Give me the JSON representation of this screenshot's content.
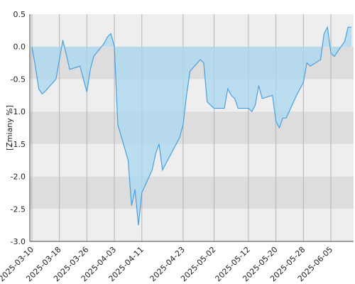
{
  "chart_data": {
    "type": "area",
    "title": "",
    "xlabel": "",
    "ylabel": "[Zmiany %]",
    "ylim": [
      -3.0,
      0.5
    ],
    "yticks": [
      "0.5",
      "0.0",
      "-0.5",
      "-1.0",
      "-1.5",
      "-2.0",
      "-2.5",
      "-3.0"
    ],
    "xticks": [
      "2025-03-10",
      "2025-03-18",
      "2025-03-26",
      "2025-04-03",
      "2025-04-11",
      "2025-04-23",
      "2025-05-02",
      "2025-05-12",
      "2025-05-20",
      "2025-05-28",
      "2025-06-05"
    ],
    "grid": "horizontal bands and vertical lines",
    "colors": {
      "line": "#4a9fe0",
      "fill": "#a8d8f0",
      "band_light": "#eeeeee",
      "band_dark": "#dddddd",
      "vgrid": "#b4b4b4",
      "axis": "#444444"
    },
    "series": [
      {
        "x": [
          "2025-03-10",
          "2025-03-11",
          "2025-03-12",
          "2025-03-13",
          "2025-03-14",
          "2025-03-17",
          "2025-03-18",
          "2025-03-19",
          "2025-03-20",
          "2025-03-21",
          "2025-03-24",
          "2025-03-25",
          "2025-03-26",
          "2025-03-27",
          "2025-03-28",
          "2025-03-31",
          "2025-04-01",
          "2025-04-02",
          "2025-04-03",
          "2025-04-04",
          "2025-04-07",
          "2025-04-08",
          "2025-04-09",
          "2025-04-10",
          "2025-04-11",
          "2025-04-14",
          "2025-04-15",
          "2025-04-16",
          "2025-04-17",
          "2025-04-22",
          "2025-04-23",
          "2025-04-24",
          "2025-04-25",
          "2025-04-28",
          "2025-04-29",
          "2025-04-30",
          "2025-05-02",
          "2025-05-05",
          "2025-05-06",
          "2025-05-07",
          "2025-05-08",
          "2025-05-09",
          "2025-05-12",
          "2025-05-13",
          "2025-05-14",
          "2025-05-15",
          "2025-05-16",
          "2025-05-19",
          "2025-05-20",
          "2025-05-21",
          "2025-05-22",
          "2025-05-23",
          "2025-05-26",
          "2025-05-27",
          "2025-05-28",
          "2025-05-29",
          "2025-05-30",
          "2025-06-02",
          "2025-06-03",
          "2025-06-04",
          "2025-06-05",
          "2025-06-06",
          "2025-06-09",
          "2025-06-10",
          "2025-06-11"
        ],
        "values": [
          0.0,
          -0.3,
          -0.65,
          -0.73,
          -0.68,
          -0.5,
          -0.2,
          0.1,
          -0.12,
          -0.35,
          -0.3,
          -0.5,
          -0.7,
          -0.35,
          -0.15,
          0.05,
          0.15,
          0.2,
          0.0,
          -1.2,
          -1.75,
          -2.45,
          -2.2,
          -2.75,
          -2.25,
          -1.9,
          -1.65,
          -1.5,
          -1.9,
          -1.4,
          -1.2,
          -0.75,
          -0.38,
          -0.2,
          -0.25,
          -0.85,
          -0.95,
          -0.95,
          -0.65,
          -0.75,
          -0.8,
          -0.95,
          -0.95,
          -1.0,
          -0.9,
          -0.6,
          -0.8,
          -0.75,
          -1.15,
          -1.25,
          -1.1,
          -1.1,
          -0.75,
          -0.65,
          -0.55,
          -0.25,
          -0.3,
          -0.2,
          0.2,
          0.3,
          -0.1,
          -0.15,
          0.08,
          0.3,
          0.3
        ]
      }
    ]
  }
}
